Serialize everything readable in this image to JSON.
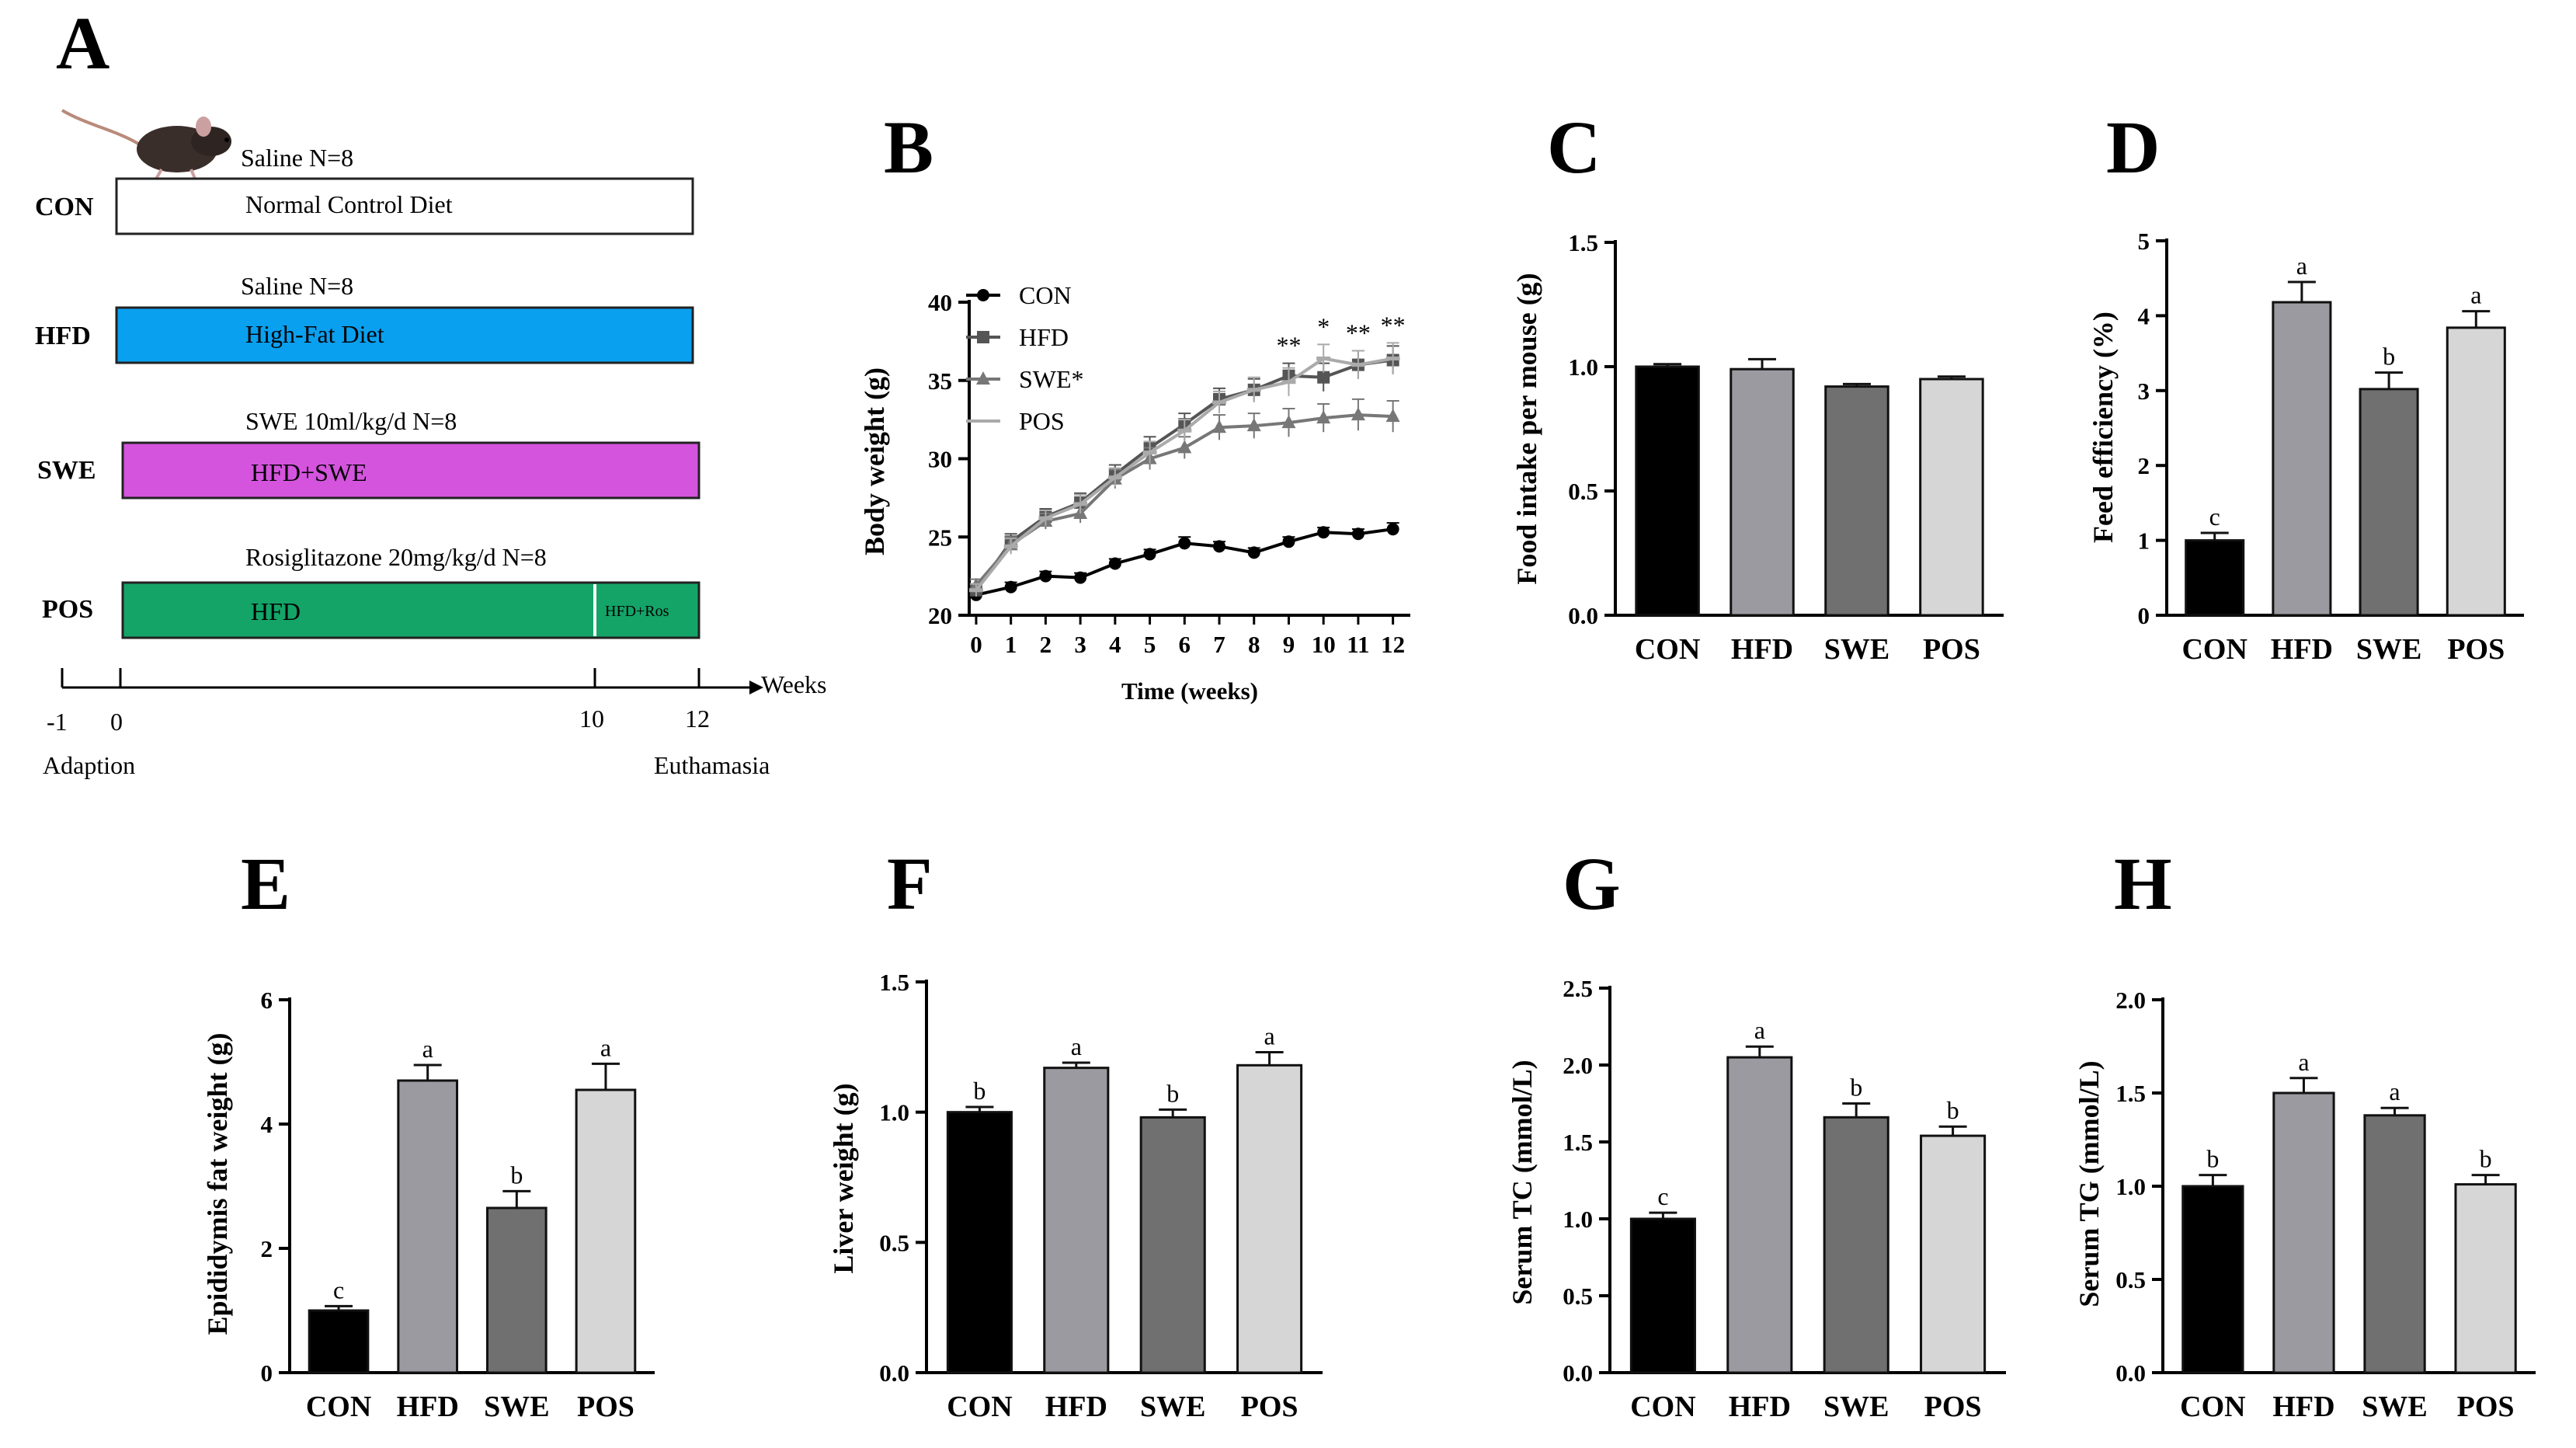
{
  "panel_labels": [
    "A",
    "B",
    "C",
    "D",
    "E",
    "F",
    "G",
    "H"
  ],
  "schedule": {
    "groups": [
      {
        "name": "CON",
        "header": "Saline  N=8",
        "bar_text": "Normal Control Diet",
        "color": "#ffffff"
      },
      {
        "name": "HFD",
        "header": "Saline  N=8",
        "bar_text": "High-Fat Diet",
        "color": "#0aa0f0"
      },
      {
        "name": "SWE",
        "header": "SWE 10ml/kg/d  N=8",
        "bar_text": "HFD+SWE",
        "color": "#d454de"
      },
      {
        "name": "POS",
        "header": "Rosiglitazone 20mg/kg/d  N=8",
        "bar_text": "HFD",
        "bar_text2": "HFD+Ros",
        "color": "#14a468"
      }
    ],
    "axis_label": "Weeks",
    "ticks": [
      "-1",
      "0",
      "10",
      "12"
    ],
    "start_label": "Adaption",
    "end_label": "Euthamasia",
    "mouse_icon": "mouse-icon"
  },
  "chart_data": [
    {
      "panel": "B",
      "type": "line",
      "title": "",
      "xlabel": "Time (weeks)",
      "ylabel": "Body weight (g)",
      "x": [
        0,
        1,
        2,
        3,
        4,
        5,
        6,
        7,
        8,
        9,
        10,
        11,
        12
      ],
      "ylim": [
        20,
        40
      ],
      "yticks": [
        20,
        25,
        30,
        35,
        40
      ],
      "series": [
        {
          "name": "CON",
          "marker": "circle",
          "color": "#000000",
          "values": [
            21.3,
            21.8,
            22.5,
            22.4,
            23.3,
            23.9,
            24.6,
            24.4,
            24.0,
            24.7,
            25.3,
            25.2,
            25.5
          ],
          "errors": [
            0.3,
            0.3,
            0.3,
            0.3,
            0.3,
            0.3,
            0.4,
            0.3,
            0.3,
            0.3,
            0.3,
            0.3,
            0.4
          ]
        },
        {
          "name": "HFD",
          "marker": "square",
          "color": "#555555",
          "values": [
            21.6,
            24.7,
            26.3,
            27.2,
            29.0,
            30.7,
            32.2,
            33.8,
            34.4,
            35.3,
            35.2,
            36.0,
            36.3
          ],
          "errors": [
            0.4,
            0.5,
            0.5,
            0.6,
            0.6,
            0.7,
            0.7,
            0.7,
            0.7,
            0.8,
            0.9,
            0.9,
            0.9
          ]
        },
        {
          "name": "SWE*",
          "marker": "triangle",
          "color": "#777777",
          "values": [
            21.9,
            24.5,
            26.0,
            26.5,
            28.7,
            30.0,
            30.7,
            32.0,
            32.1,
            32.3,
            32.6,
            32.8,
            32.7
          ],
          "errors": [
            0.4,
            0.5,
            0.5,
            0.6,
            0.6,
            0.7,
            0.7,
            0.8,
            0.8,
            0.9,
            0.9,
            1.0,
            1.0
          ]
        },
        {
          "name": "POS",
          "marker": "line",
          "color": "#aaaaaa",
          "values": [
            21.6,
            24.4,
            26.2,
            27.1,
            28.8,
            30.4,
            31.8,
            33.6,
            34.4,
            34.9,
            36.4,
            36.0,
            36.4
          ],
          "errors": [
            0.4,
            0.5,
            0.5,
            0.6,
            0.6,
            0.7,
            0.7,
            0.7,
            0.8,
            0.9,
            0.9,
            0.9,
            1.0
          ]
        }
      ],
      "annotations": [
        {
          "x": 9,
          "text": "**"
        },
        {
          "x": 10,
          "text": "*"
        },
        {
          "x": 11,
          "text": "**"
        },
        {
          "x": 12,
          "text": "**"
        }
      ]
    },
    {
      "panel": "C",
      "type": "bar",
      "title": "",
      "ylabel": "Food intake per mouse (g)",
      "categories": [
        "CON",
        "HFD",
        "SWE",
        "POS"
      ],
      "values": [
        1.0,
        0.99,
        0.92,
        0.95
      ],
      "errors": [
        0.01,
        0.04,
        0.01,
        0.01
      ],
      "letters": [
        "",
        "",
        "",
        ""
      ],
      "ylim": [
        0,
        1.5
      ],
      "yticks": [
        "0.0",
        "0.5",
        "1.0",
        "1.5"
      ],
      "colors": [
        "#000000",
        "#9a9aa0",
        "#707070",
        "#d6d6d6"
      ]
    },
    {
      "panel": "D",
      "type": "bar",
      "title": "",
      "ylabel": "Feed efficiency (%)",
      "categories": [
        "CON",
        "HFD",
        "SWE",
        "POS"
      ],
      "values": [
        1.0,
        4.18,
        3.02,
        3.84
      ],
      "errors": [
        0.1,
        0.27,
        0.22,
        0.22
      ],
      "letters": [
        "c",
        "a",
        "b",
        "a"
      ],
      "ylim": [
        0,
        5
      ],
      "yticks": [
        "0",
        "1",
        "2",
        "3",
        "4",
        "5"
      ],
      "colors": [
        "#000000",
        "#9a9aa0",
        "#707070",
        "#d6d6d6"
      ]
    },
    {
      "panel": "E",
      "type": "bar",
      "title": "",
      "ylabel": "Epididymis fat weight (g)",
      "categories": [
        "CON",
        "HFD",
        "SWE",
        "POS"
      ],
      "values": [
        1.0,
        4.7,
        2.65,
        4.55
      ],
      "errors": [
        0.07,
        0.25,
        0.27,
        0.42
      ],
      "letters": [
        "c",
        "a",
        "b",
        "a"
      ],
      "ylim": [
        0,
        6
      ],
      "yticks": [
        "0",
        "2",
        "4",
        "6"
      ],
      "colors": [
        "#000000",
        "#9a9aa0",
        "#707070",
        "#d6d6d6"
      ]
    },
    {
      "panel": "F",
      "type": "bar",
      "title": "",
      "ylabel": "Liver weight (g)",
      "categories": [
        "CON",
        "HFD",
        "SWE",
        "POS"
      ],
      "values": [
        1.0,
        1.17,
        0.98,
        1.18
      ],
      "errors": [
        0.02,
        0.02,
        0.03,
        0.05
      ],
      "letters": [
        "b",
        "a",
        "b",
        "a"
      ],
      "ylim": [
        0,
        1.5
      ],
      "yticks": [
        "0.0",
        "0.5",
        "1.0",
        "1.5"
      ],
      "colors": [
        "#000000",
        "#9a9aa0",
        "#707070",
        "#d6d6d6"
      ]
    },
    {
      "panel": "G",
      "type": "bar",
      "title": "",
      "ylabel": "Serum TC (mmol/L)",
      "categories": [
        "CON",
        "HFD",
        "SWE",
        "POS"
      ],
      "values": [
        1.0,
        2.05,
        1.66,
        1.54
      ],
      "errors": [
        0.04,
        0.07,
        0.09,
        0.06
      ],
      "letters": [
        "c",
        "a",
        "b",
        "b"
      ],
      "ylim": [
        0,
        2.5
      ],
      "yticks": [
        "0.0",
        "0.5",
        "1.0",
        "1.5",
        "2.0",
        "2.5"
      ],
      "colors": [
        "#000000",
        "#9a9aa0",
        "#707070",
        "#d6d6d6"
      ]
    },
    {
      "panel": "H",
      "type": "bar",
      "title": "",
      "ylabel": "Serum TG (mmol/L)",
      "categories": [
        "CON",
        "HFD",
        "SWE",
        "POS"
      ],
      "values": [
        1.0,
        1.5,
        1.38,
        1.01
      ],
      "errors": [
        0.06,
        0.08,
        0.04,
        0.05
      ],
      "letters": [
        "b",
        "a",
        "a",
        "b"
      ],
      "ylim": [
        0,
        2.0
      ],
      "yticks": [
        "0.0",
        "0.5",
        "1.0",
        "1.5",
        "2.0"
      ],
      "colors": [
        "#000000",
        "#9a9aa0",
        "#707070",
        "#d6d6d6"
      ]
    }
  ]
}
